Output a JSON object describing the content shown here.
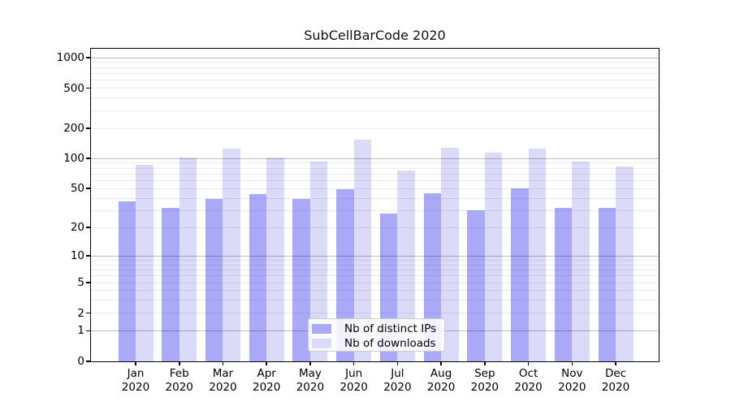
{
  "title": "SubCellBarCode 2020",
  "chart_data": {
    "type": "bar",
    "title": "SubCellBarCode 2020",
    "xlabel": "",
    "ylabel": "",
    "yscale": "log1p",
    "grid": true,
    "legend_position": "lower center inside",
    "ylim": [
      0,
      1250
    ],
    "yticks": [
      0,
      1,
      2,
      5,
      10,
      20,
      50,
      100,
      200,
      500,
      1000
    ],
    "categories": [
      "Jan",
      "Feb",
      "Mar",
      "Apr",
      "May",
      "Jun",
      "Jul",
      "Aug",
      "Sep",
      "Oct",
      "Nov",
      "Dec"
    ],
    "year_label": "2020",
    "series": [
      {
        "name": "Nb of distinct IPs",
        "color": "#a9a9f8",
        "values": [
          37,
          32,
          39,
          44,
          39,
          49,
          28,
          45,
          30,
          50,
          32,
          32
        ]
      },
      {
        "name": "Nb of downloads",
        "color": "#dadaf9",
        "values": [
          86,
          102,
          125,
          102,
          93,
          155,
          76,
          127,
          114,
          125,
          93,
          84
        ]
      }
    ]
  },
  "colors": {
    "background": "#ffffff",
    "axis": "#000000",
    "major_grid": "#bdbdbd",
    "minor_grid": "#ececec",
    "text": "#000000"
  }
}
